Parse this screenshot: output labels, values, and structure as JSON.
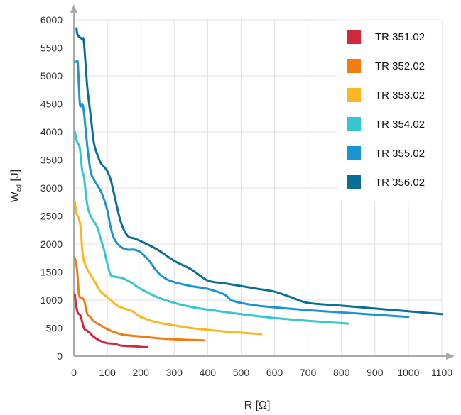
{
  "chart_data": {
    "type": "line",
    "title": "",
    "xlabel": "R [Ω]",
    "ylabel_main": "W",
    "ylabel_sub": "ad",
    "ylabel_unit": " [J]",
    "xlim": [
      0,
      1100
    ],
    "ylim": [
      0,
      6000
    ],
    "xticks": [
      0,
      100,
      200,
      300,
      400,
      500,
      600,
      700,
      800,
      900,
      1000,
      1100
    ],
    "yticks": [
      0,
      500,
      1000,
      1500,
      2000,
      2500,
      3000,
      3500,
      4000,
      4500,
      5000,
      5500,
      6000
    ],
    "grid": true,
    "legend_position": "top-right",
    "series": [
      {
        "name": "TR 351.02",
        "color": "#d0293b",
        "x": [
          3,
          5,
          10,
          15,
          20,
          30,
          40,
          50,
          60,
          80,
          100,
          120,
          140,
          160,
          180,
          200,
          220
        ],
        "y": [
          1100,
          980,
          800,
          750,
          720,
          500,
          450,
          400,
          340,
          270,
          230,
          220,
          190,
          180,
          175,
          165,
          160
        ]
      },
      {
        "name": "TR 352.02",
        "color": "#f07c12",
        "x": [
          3,
          6,
          10,
          15,
          20,
          30,
          40,
          45,
          50,
          60,
          80,
          100,
          120,
          150,
          200,
          250,
          300,
          350,
          390
        ],
        "y": [
          1750,
          1680,
          1500,
          1100,
          1050,
          1000,
          750,
          720,
          690,
          620,
          550,
          480,
          430,
          380,
          350,
          320,
          300,
          290,
          280
        ]
      },
      {
        "name": "TR 353.02",
        "color": "#fbb723",
        "x": [
          3,
          8,
          15,
          20,
          25,
          30,
          40,
          50,
          60,
          70,
          80,
          90,
          100,
          110,
          130,
          150,
          175,
          200,
          250,
          300,
          350,
          400,
          450,
          500,
          560
        ],
        "y": [
          2750,
          2550,
          2450,
          2300,
          1900,
          1700,
          1550,
          1450,
          1350,
          1250,
          1150,
          1100,
          1050,
          1000,
          900,
          850,
          800,
          700,
          600,
          550,
          500,
          470,
          440,
          420,
          390
        ]
      },
      {
        "name": "TR 354.02",
        "color": "#35c6cf",
        "x": [
          3,
          8,
          12,
          18,
          25,
          30,
          40,
          50,
          60,
          70,
          80,
          90,
          100,
          110,
          120,
          140,
          150,
          175,
          200,
          250,
          300,
          350,
          400,
          500,
          600,
          700,
          820
        ],
        "y": [
          4000,
          3850,
          3800,
          3700,
          3300,
          3200,
          2700,
          2500,
          2400,
          2300,
          2100,
          1900,
          1650,
          1450,
          1420,
          1400,
          1380,
          1300,
          1200,
          1050,
          950,
          880,
          830,
          750,
          680,
          630,
          580
        ]
      },
      {
        "name": "TR 355.02",
        "color": "#1b94d2",
        "x": [
          3,
          8,
          12,
          18,
          25,
          30,
          40,
          50,
          60,
          70,
          80,
          90,
          100,
          110,
          120,
          140,
          160,
          180,
          200,
          225,
          250,
          275,
          300,
          350,
          400,
          450,
          470,
          500,
          550,
          600,
          700,
          800,
          900,
          1000
        ],
        "y": [
          5250,
          5250,
          5200,
          4500,
          4500,
          4350,
          3750,
          3300,
          3150,
          3050,
          2950,
          2800,
          2600,
          2300,
          2100,
          1950,
          1900,
          1900,
          1850,
          1700,
          1500,
          1380,
          1320,
          1250,
          1200,
          1100,
          1000,
          950,
          900,
          870,
          820,
          780,
          740,
          700
        ]
      },
      {
        "name": "TR 356.02",
        "color": "#0b6e96",
        "x": [
          8,
          10,
          15,
          20,
          25,
          30,
          40,
          50,
          60,
          70,
          80,
          90,
          100,
          110,
          120,
          140,
          160,
          180,
          200,
          250,
          300,
          350,
          400,
          450,
          500,
          550,
          600,
          650,
          700,
          800,
          900,
          1000,
          1100
        ],
        "y": [
          5850,
          5750,
          5700,
          5680,
          5650,
          5600,
          4800,
          4300,
          3800,
          3600,
          3450,
          3380,
          3300,
          3150,
          2900,
          2400,
          2150,
          2100,
          2050,
          1900,
          1700,
          1550,
          1350,
          1300,
          1250,
          1200,
          1150,
          1050,
          950,
          900,
          850,
          800,
          750
        ]
      }
    ]
  }
}
